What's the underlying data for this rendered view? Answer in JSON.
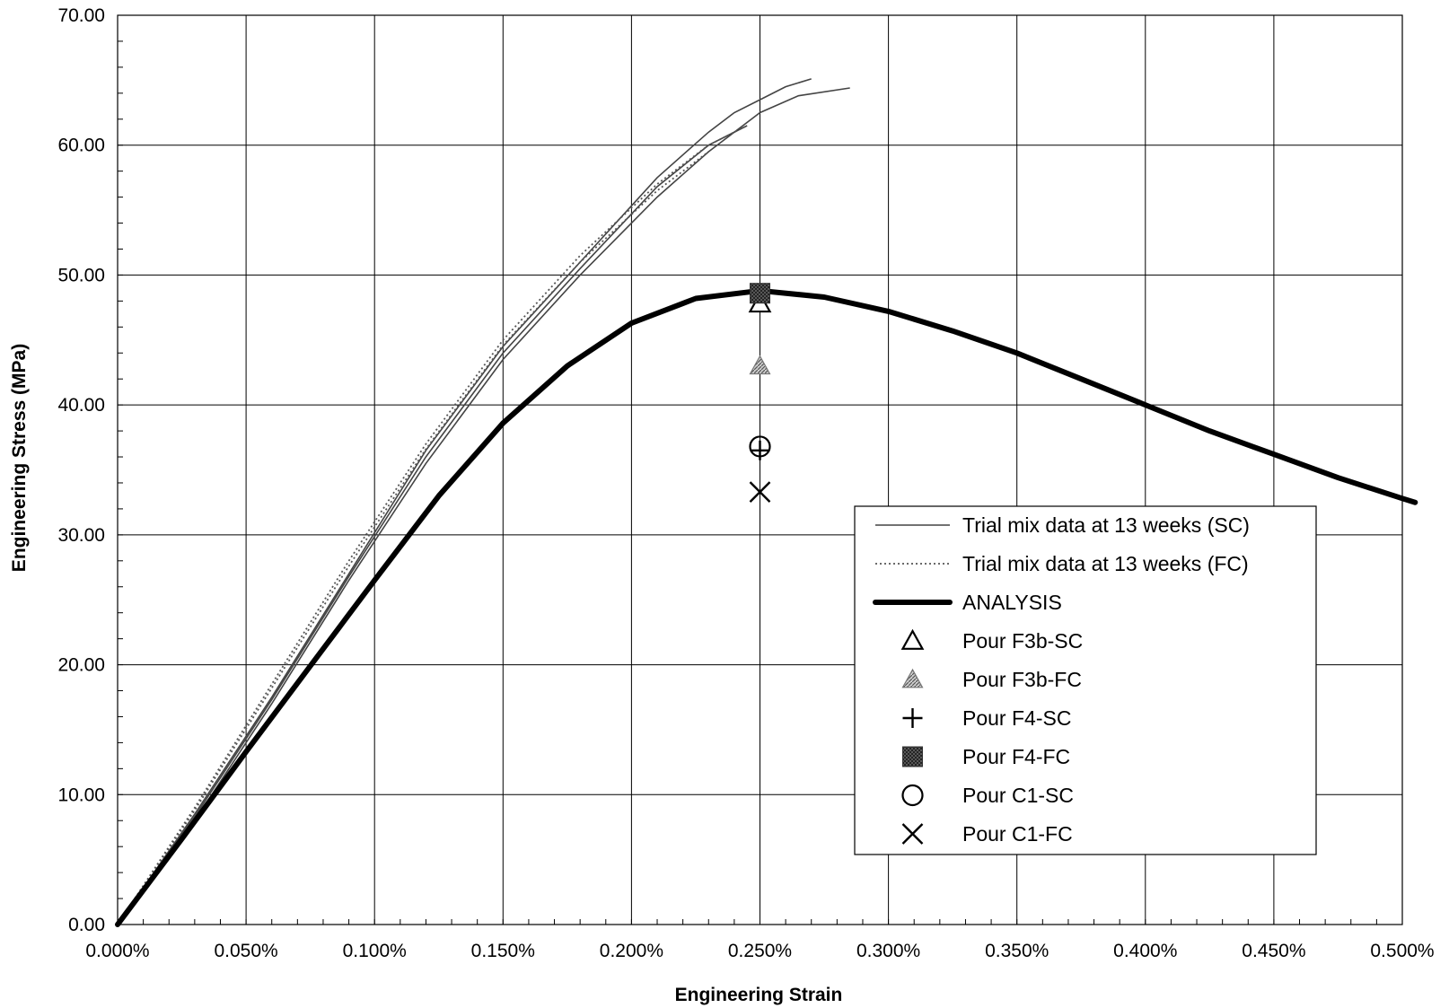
{
  "chart_data": {
    "type": "line",
    "title": "",
    "xlabel": "Engineering Strain",
    "ylabel": "Engineering Stress (MPa)",
    "xlim": [
      0,
      0.5
    ],
    "ylim": [
      0,
      70
    ],
    "x_unit": "%",
    "grid": true,
    "legend_position": "lower-right",
    "x_ticks": [
      "0.000%",
      "0.050%",
      "0.100%",
      "0.150%",
      "0.200%",
      "0.250%",
      "0.300%",
      "0.350%",
      "0.400%",
      "0.450%",
      "0.500%"
    ],
    "y_ticks": [
      "0.00",
      "10.00",
      "20.00",
      "30.00",
      "40.00",
      "50.00",
      "60.00",
      "70.00"
    ],
    "series": [
      {
        "name": "Trial mix data at 13 weeks (SC)",
        "kind": "line",
        "style": "thin",
        "color": "#444444",
        "curves": [
          {
            "x": [
              0,
              0.03,
              0.06,
              0.09,
              0.12,
              0.15,
              0.18,
              0.21,
              0.23,
              0.24,
              0.25,
              0.26,
              0.27
            ],
            "y": [
              0,
              8.5,
              17.5,
              27,
              36.5,
              44.5,
              51,
              57.5,
              61,
              62.5,
              63.5,
              64.5,
              65.1
            ]
          },
          {
            "x": [
              0,
              0.03,
              0.06,
              0.09,
              0.12,
              0.15,
              0.18,
              0.21,
              0.23,
              0.25,
              0.265,
              0.285
            ],
            "y": [
              0,
              8,
              17,
              26.5,
              35.5,
              43.5,
              50,
              56,
              59.5,
              62.5,
              63.8,
              64.4
            ]
          },
          {
            "x": [
              0,
              0.03,
              0.06,
              0.09,
              0.12,
              0.15,
              0.18,
              0.21,
              0.23,
              0.245
            ],
            "y": [
              0,
              8.3,
              17.3,
              26.8,
              36,
              44,
              50.5,
              56.8,
              60,
              61.5
            ]
          }
        ]
      },
      {
        "name": "Trial mix data at 13 weeks (FC)",
        "kind": "line",
        "style": "dotted",
        "color": "#555555",
        "curves": [
          {
            "x": [
              0,
              0.03,
              0.06,
              0.09,
              0.12,
              0.15,
              0.18,
              0.21,
              0.23,
              0.245
            ],
            "y": [
              0,
              9,
              18.5,
              28,
              37,
              45,
              51.5,
              57,
              60,
              61.5
            ]
          },
          {
            "x": [
              0,
              0.03,
              0.06,
              0.09,
              0.12,
              0.15,
              0.18,
              0.21,
              0.23
            ],
            "y": [
              0,
              8.8,
              18.2,
              27.6,
              36.6,
              44.6,
              51,
              56.5,
              59.5
            ]
          }
        ]
      },
      {
        "name": "ANALYSIS",
        "kind": "line",
        "style": "thick",
        "color": "#000000",
        "curves": [
          {
            "x": [
              0,
              0.025,
              0.05,
              0.075,
              0.1,
              0.125,
              0.15,
              0.175,
              0.2,
              0.225,
              0.25,
              0.275,
              0.3,
              0.325,
              0.35,
              0.375,
              0.4,
              0.425,
              0.45,
              0.475,
              0.5,
              0.505
            ],
            "y": [
              0,
              6.6,
              13.3,
              19.9,
              26.5,
              33,
              38.6,
              43,
              46.3,
              48.2,
              48.8,
              48.3,
              47.2,
              45.7,
              44,
              42,
              40,
              38,
              36.2,
              34.4,
              32.8,
              32.5
            ]
          }
        ]
      },
      {
        "name": "Pour F3b-SC",
        "kind": "marker",
        "marker": "triangle-open",
        "x": [
          0.25
        ],
        "y": [
          47.8
        ]
      },
      {
        "name": "Pour F3b-FC",
        "kind": "marker",
        "marker": "triangle-hatched",
        "x": [
          0.25
        ],
        "y": [
          43
        ]
      },
      {
        "name": "Pour F4-SC",
        "kind": "marker",
        "marker": "plus",
        "x": [
          0.25
        ],
        "y": [
          36.5
        ]
      },
      {
        "name": "Pour F4-FC",
        "kind": "marker",
        "marker": "square-hatched",
        "x": [
          0.25
        ],
        "y": [
          48.6
        ]
      },
      {
        "name": "Pour C1-SC",
        "kind": "marker",
        "marker": "circle-open",
        "x": [
          0.25
        ],
        "y": [
          36.8
        ]
      },
      {
        "name": "Pour C1-FC",
        "kind": "marker",
        "marker": "x",
        "x": [
          0.25
        ],
        "y": [
          33.3
        ]
      }
    ]
  }
}
